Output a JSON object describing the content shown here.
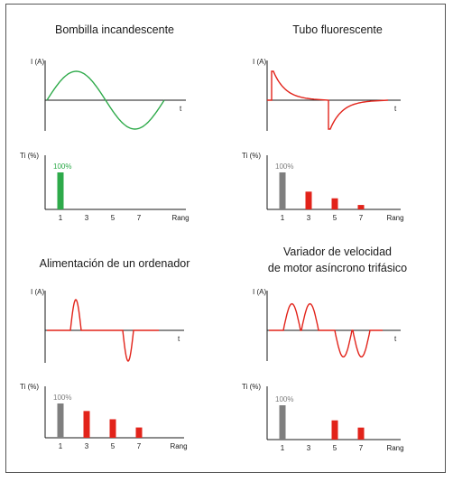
{
  "colors": {
    "green": "#2eaa4a",
    "red": "#e2231a",
    "gray": "#7f7f7f",
    "axis": "#1a1a1a",
    "text": "#1a1a1a"
  },
  "chart_data": [
    {
      "type": "line",
      "title": "Bombilla incandescente",
      "ylabel": "I (A)",
      "xlabel": "t",
      "waveform": "sine",
      "color": "green"
    },
    {
      "type": "bar",
      "title": "Bombilla incandescente",
      "ylabel": "Ti (%)",
      "xlabel": "Rang",
      "categories": [
        "1",
        "3",
        "5",
        "7"
      ],
      "values": [
        100,
        0,
        0,
        0
      ],
      "data_labels": [
        "100%",
        "",
        "",
        ""
      ],
      "label_color": "green",
      "bar_colors": [
        "green",
        "red",
        "red",
        "red"
      ]
    },
    {
      "type": "line",
      "title": "Tubo fluorescente",
      "ylabel": "I (A)",
      "xlabel": "t",
      "waveform": "spike-decay",
      "color": "red"
    },
    {
      "type": "bar",
      "title": "Tubo fluorescente",
      "ylabel": "Ti (%)",
      "xlabel": "Rang",
      "categories": [
        "1",
        "3",
        "5",
        "7"
      ],
      "values": [
        100,
        48,
        30,
        12
      ],
      "data_labels": [
        "100%",
        "",
        "",
        ""
      ],
      "label_color": "gray",
      "bar_colors": [
        "gray",
        "red",
        "red",
        "red"
      ]
    },
    {
      "type": "line",
      "title": "Alimentación de un ordenador",
      "ylabel": "I (A)",
      "xlabel": "t",
      "waveform": "pulses",
      "color": "red"
    },
    {
      "type": "bar",
      "title": "Alimentación de un ordenador",
      "ylabel": "Ti (%)",
      "xlabel": "Rang",
      "categories": [
        "1",
        "3",
        "5",
        "7"
      ],
      "values": [
        100,
        78,
        54,
        30
      ],
      "data_labels": [
        "100%",
        "",
        "",
        ""
      ],
      "label_color": "gray",
      "bar_colors": [
        "gray",
        "red",
        "red",
        "red"
      ]
    },
    {
      "type": "line",
      "title": "Variador de velocidad\nde motor asíncrono trifásico",
      "ylabel": "I (A)",
      "xlabel": "t",
      "waveform": "double-pulses",
      "color": "red"
    },
    {
      "type": "bar",
      "title": "Variador de velocidad\nde motor asíncrono trifásico",
      "ylabel": "Ti (%)",
      "xlabel": "Rang",
      "categories": [
        "1",
        "3",
        "5",
        "7"
      ],
      "values": [
        100,
        0,
        56,
        35
      ],
      "data_labels": [
        "100%",
        "",
        "",
        ""
      ],
      "label_color": "gray",
      "bar_colors": [
        "gray",
        "red",
        "red",
        "red"
      ]
    }
  ]
}
